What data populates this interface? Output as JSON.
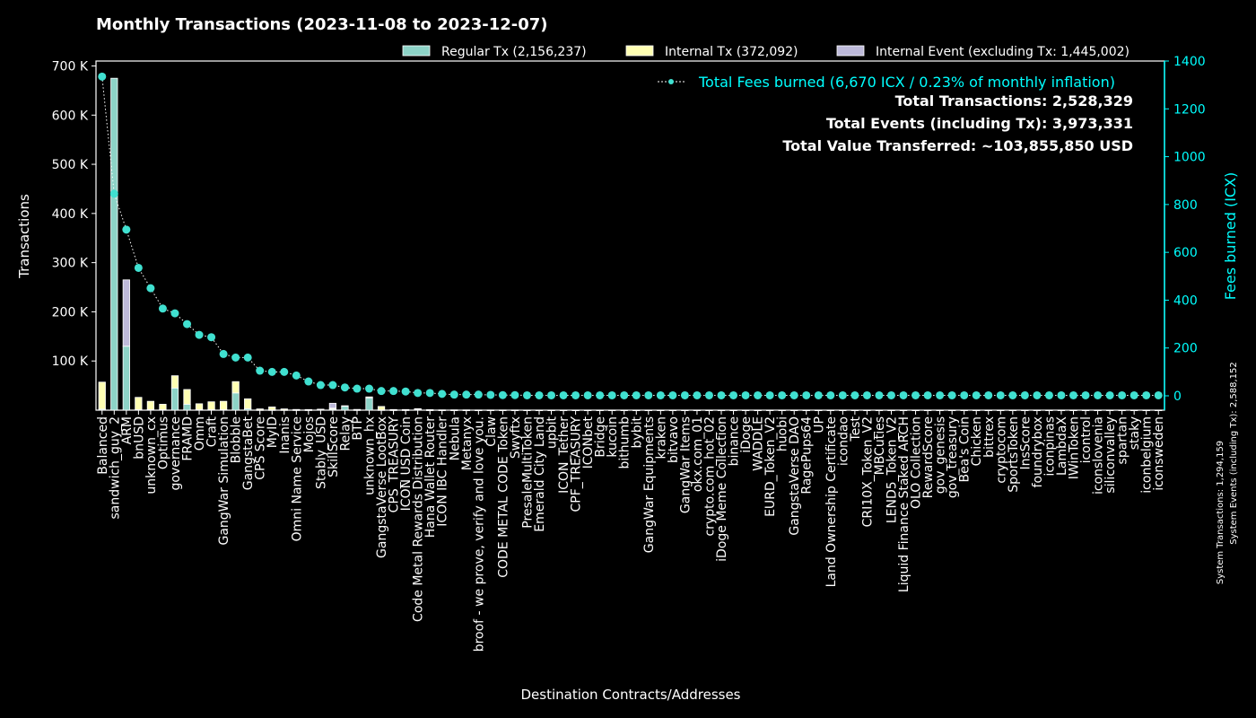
{
  "chart_data": {
    "type": "bar",
    "title": "Monthly Transactions (2023-11-08 to 2023-12-07)",
    "xlabel": "Destination Contracts/Addresses",
    "ylabel": "Transactions",
    "y2label": "Fees burned (ICX)",
    "ylim": [
      0,
      710000
    ],
    "y2lim": [
      -60,
      1400
    ],
    "yticks": [
      {
        "v": 100000,
        "label": "100 K"
      },
      {
        "v": 200000,
        "label": "200 K"
      },
      {
        "v": 300000,
        "label": "300 K"
      },
      {
        "v": 400000,
        "label": "400 K"
      },
      {
        "v": 500000,
        "label": "500 K"
      },
      {
        "v": 600000,
        "label": "600 K"
      },
      {
        "v": 700000,
        "label": "700 K"
      }
    ],
    "y2ticks": [
      0,
      200,
      400,
      600,
      800,
      1000,
      1200,
      1400
    ],
    "legend": [
      {
        "label": "Regular Tx (2,156,237)",
        "color": "#8dd3c7"
      },
      {
        "label": "Internal Tx (372,092)",
        "color": "#ffffb3"
      },
      {
        "label": "Internal Event (excluding Tx: 1,445,002)",
        "color": "#bebada"
      }
    ],
    "fees_legend": "Total Fees burned (6,670 ICX / 0.23% of monthly inflation)",
    "summary": [
      "Total Transactions: 2,528,329",
      "Total Events (including Tx): 3,973,331",
      "Total Value Transferred: ~103,855,850 USD"
    ],
    "side_notes": [
      "System Transactions: 1,294,159",
      "System Events (including Tx): 2,588,152"
    ],
    "colors": {
      "regular": "#8dd3c7",
      "internal": "#ffffb3",
      "event": "#bebada",
      "fees": "#40e0d0",
      "axis2": "#00ffff"
    },
    "categories": [
      "Balanced",
      "sandwich_guy_2",
      "ARM",
      "bnUSD",
      "unknown_cx",
      "Optimus",
      "governance",
      "FRAMD",
      "Omm",
      "Craft",
      "GangWar Simulation",
      "Blobble",
      "GangstaBet",
      "CPS Score",
      "MyID",
      "Inanis",
      "Omni Name Service",
      "Mojos",
      "Stably_USD",
      "SkillScore",
      "Relay",
      "BTP",
      "unknown_hx",
      "GangstaVerse LootBox",
      "CPS_TREASURY",
      "ICON USD Coin",
      "Code Metal Rewards Distribution",
      "Hana Wallet Router",
      "ICON IBC Handler",
      "Nebula",
      "Metanyx",
      "broof - we prove, verify and love you.",
      "Claw",
      "CODE METAL CODE Token",
      "Swyftx",
      "PresaleMultiToken",
      "Emerald City Land",
      "upbit",
      "ICON_Tether",
      "CPF_TREASURY",
      "ICONbet",
      "Bridge",
      "kucoin",
      "bithumb",
      "bybit",
      "GangWar Equipments",
      "kraken",
      "bitvavo",
      "GangWar Items",
      "okx.com_01",
      "crypto.com_hot_02",
      "iDoge Meme Collection",
      "binance",
      "iDoge",
      "WADDLE",
      "EURD_Token_V2",
      "huobi",
      "GangstaVerse DAO",
      "RagePups64",
      "UP",
      "Land Ownership Certificate",
      "icondao",
      "Test",
      "CRI10X_Token_V2",
      "MBCuties",
      "LEND5_Token_V2",
      "Liquid Finance Staked ARCH",
      "OLO Collection",
      "RewardScore",
      "gov_genesis",
      "gov_treasury",
      "Bea's Coin",
      "Chicken",
      "bittrex",
      "cryptocom",
      "SportsToken",
      "InsScore",
      "foundrybox",
      "iconpinas",
      "LambdaX",
      "IWinToken",
      "icontrol",
      "iconslovenia",
      "siliconvalley",
      "spartan",
      "staky",
      "iconbelgium",
      "iconsweden"
    ],
    "series": [
      {
        "name": "Regular Tx",
        "values": [
          2000,
          675000,
          130000,
          1000,
          1000,
          1000,
          45000,
          12000,
          1000,
          1000,
          1000,
          35000,
          3000,
          500,
          500,
          500,
          400,
          300,
          1000,
          2000,
          8000,
          500,
          25000,
          500,
          300,
          300,
          2000,
          100,
          100,
          100,
          50,
          50,
          50,
          50,
          50,
          30,
          30,
          30,
          30,
          30,
          30,
          30,
          30,
          30,
          30,
          30,
          30,
          30,
          30,
          30,
          30,
          30,
          30,
          30,
          30,
          30,
          30,
          30,
          30,
          30,
          30,
          30,
          30,
          30,
          30,
          30,
          30,
          30,
          30,
          30,
          30,
          30,
          30,
          30,
          30,
          30,
          30,
          30,
          30,
          30,
          30,
          30,
          30,
          30,
          30,
          30,
          30,
          30
        ]
      },
      {
        "name": "Internal Tx",
        "values": [
          55000,
          0,
          0,
          25000,
          17000,
          11000,
          25000,
          30000,
          12000,
          16000,
          17000,
          23000,
          20000,
          2000,
          6000,
          2000,
          1000,
          1000,
          1000,
          2000,
          1000,
          1000,
          2000,
          7000,
          1000,
          1000,
          1000,
          1000,
          500,
          500,
          500,
          300,
          300,
          300,
          300,
          200,
          200,
          200,
          200,
          200,
          200,
          200,
          200,
          200,
          200,
          200,
          200,
          200,
          200,
          200,
          200,
          200,
          200,
          200,
          200,
          200,
          200,
          200,
          200,
          200,
          200,
          200,
          200,
          200,
          200,
          200,
          200,
          200,
          200,
          200,
          200,
          200,
          200,
          200,
          200,
          200,
          200,
          200,
          200,
          200,
          200,
          200,
          200,
          200,
          200,
          200,
          200,
          200
        ]
      },
      {
        "name": "Internal Event",
        "values": [
          0,
          0,
          135000,
          0,
          0,
          0,
          0,
          0,
          0,
          0,
          0,
          0,
          0,
          0,
          0,
          0,
          0,
          0,
          0,
          10000,
          0,
          0,
          0,
          0,
          0,
          0,
          0,
          0,
          0,
          0,
          0,
          0,
          0,
          0,
          0,
          0,
          0,
          0,
          0,
          0,
          0,
          0,
          0,
          0,
          0,
          0,
          0,
          0,
          0,
          0,
          0,
          0,
          0,
          0,
          0,
          0,
          0,
          0,
          0,
          0,
          0,
          0,
          0,
          0,
          0,
          0,
          0,
          0,
          0,
          0,
          0,
          0,
          0,
          0,
          0,
          0,
          0,
          0,
          0,
          0,
          0,
          0,
          0,
          0,
          0,
          0,
          0,
          0
        ]
      },
      {
        "name": "Fees burned",
        "values": [
          1335,
          845,
          695,
          535,
          450,
          365,
          345,
          300,
          255,
          245,
          175,
          160,
          160,
          105,
          100,
          100,
          85,
          60,
          45,
          45,
          35,
          30,
          30,
          20,
          20,
          18,
          12,
          12,
          8,
          5,
          5,
          5,
          4,
          3,
          3,
          2,
          2,
          2,
          2,
          2,
          2,
          2,
          2,
          2,
          2,
          2,
          2,
          2,
          2,
          2,
          2,
          2,
          2,
          2,
          2,
          2,
          2,
          2,
          2,
          2,
          2,
          2,
          2,
          2,
          2,
          2,
          2,
          2,
          2,
          2,
          2,
          2,
          2,
          2,
          2,
          2,
          2,
          2,
          2,
          2,
          2,
          2,
          2,
          2,
          2,
          2,
          2,
          2
        ]
      }
    ]
  }
}
